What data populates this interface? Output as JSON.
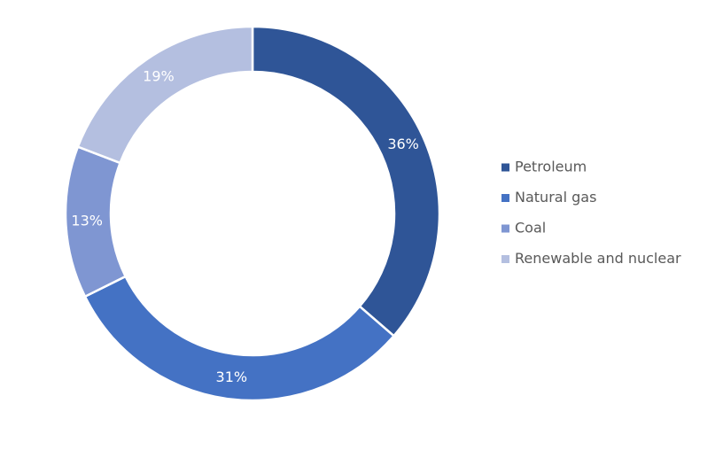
{
  "chart_data": {
    "type": "pie",
    "categories": [
      "Petroleum",
      "Natural gas",
      "Coal",
      "Renewable and nuclear"
    ],
    "values": [
      36,
      31,
      13,
      19
    ],
    "value_labels": [
      "36%",
      "31%",
      "13%",
      "19%"
    ],
    "colors": [
      "#2f5597",
      "#4472c4",
      "#7f96d2",
      "#b4bfe0"
    ],
    "legend": "right"
  }
}
